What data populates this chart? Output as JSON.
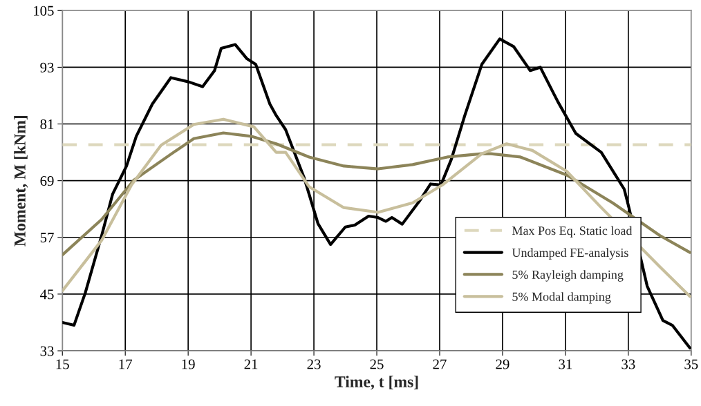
{
  "chart_data": {
    "type": "line",
    "xlabel": "Time, t [ms]",
    "ylabel": "Moment, M [kNm]",
    "xlim": [
      15,
      35
    ],
    "xticks": [
      15,
      17,
      19,
      21,
      23,
      25,
      27,
      29,
      31,
      33,
      35
    ],
    "ylim": [
      33,
      105
    ],
    "yticks": [
      33,
      45,
      57,
      69,
      81,
      93,
      105
    ],
    "grid": true,
    "legend": "bottom right",
    "marker": "none",
    "series": [
      {
        "name": "Max Pos Eq. Static load",
        "color": "#ddd8bd",
        "line_style": "dashed",
        "x": [
          15,
          35
        ],
        "values": [
          76.6,
          76.6
        ]
      },
      {
        "name": "Undamped FE-analysis",
        "color": "#000000",
        "x": [
          15,
          15.37,
          15.73,
          16.25,
          16.6,
          17.04,
          17.35,
          17.86,
          18.45,
          19.02,
          19.46,
          19.84,
          20.05,
          20.5,
          20.87,
          21.15,
          21.6,
          21.8,
          22.1,
          22.69,
          23.13,
          23.53,
          24.0,
          24.3,
          24.74,
          25.04,
          25.29,
          25.48,
          25.81,
          26.36,
          26.71,
          27.04,
          27.37,
          27.8,
          28.34,
          28.91,
          29.35,
          29.88,
          30.2,
          30.76,
          31.33,
          32.14,
          32.87,
          33.02,
          33.6,
          34.1,
          34.4,
          34.96
        ],
        "values": [
          39,
          38.4,
          45.3,
          57.4,
          66.2,
          72.1,
          78.4,
          85.2,
          90.8,
          89.9,
          88.9,
          92.3,
          97,
          97.8,
          94.8,
          93.6,
          85.2,
          82.8,
          79.8,
          69.6,
          59.9,
          55.5,
          59.2,
          59.6,
          61.5,
          61.2,
          60.4,
          61.2,
          59.8,
          64.7,
          68.3,
          68.1,
          73.5,
          82.8,
          93.6,
          99,
          97.4,
          92.3,
          93,
          85.7,
          79,
          75,
          67.2,
          63.3,
          46.7,
          39.4,
          38.4,
          33.6
        ]
      },
      {
        "name": "5% Rayleigh damping",
        "color": "#8c8459",
        "x": [
          15,
          16.25,
          17.27,
          18.45,
          19.18,
          20.12,
          21,
          21.8,
          22.85,
          23.95,
          25.04,
          26.14,
          27.24,
          28.34,
          28.63,
          29.57,
          31.04,
          32.5,
          34,
          34.96
        ],
        "values": [
          53.3,
          60.8,
          69.1,
          74.6,
          77.9,
          79.1,
          78.4,
          76.8,
          74,
          72.1,
          71.5,
          72.4,
          74,
          74.7,
          74.7,
          74,
          70.2,
          64.3,
          57.4,
          53.8
        ]
      },
      {
        "name": "5% Modal damping",
        "color": "#c8bf9c",
        "x": [
          15,
          16.25,
          17.2,
          18.14,
          19.18,
          20.12,
          21.09,
          21.8,
          22.1,
          22.85,
          23.95,
          25.04,
          26.14,
          27.09,
          28.34,
          29.13,
          29.95,
          31.04,
          32.08,
          34,
          34.96
        ],
        "values": [
          45.7,
          56.4,
          68.1,
          76.5,
          80.9,
          82,
          80.4,
          75,
          75,
          67.7,
          63.3,
          62.3,
          64.3,
          68.1,
          74.7,
          76.8,
          75.4,
          71,
          63.7,
          50.8,
          44.5
        ]
      }
    ]
  }
}
